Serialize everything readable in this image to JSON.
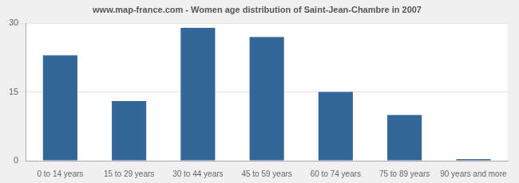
{
  "chart_data": {
    "type": "bar",
    "title": "www.map-france.com - Women age distribution of Saint-Jean-Chambre in 2007",
    "categories": [
      "0 to 14 years",
      "15 to 29 years",
      "30 to 44 years",
      "45 to 59 years",
      "60 to 74 years",
      "75 to 89 years",
      "90 years and more"
    ],
    "values": [
      23,
      13,
      29,
      27,
      15,
      10,
      0
    ],
    "color": "#336699",
    "ylim": [
      0,
      30
    ],
    "yticks": [
      0,
      15,
      30
    ],
    "grid": true
  }
}
